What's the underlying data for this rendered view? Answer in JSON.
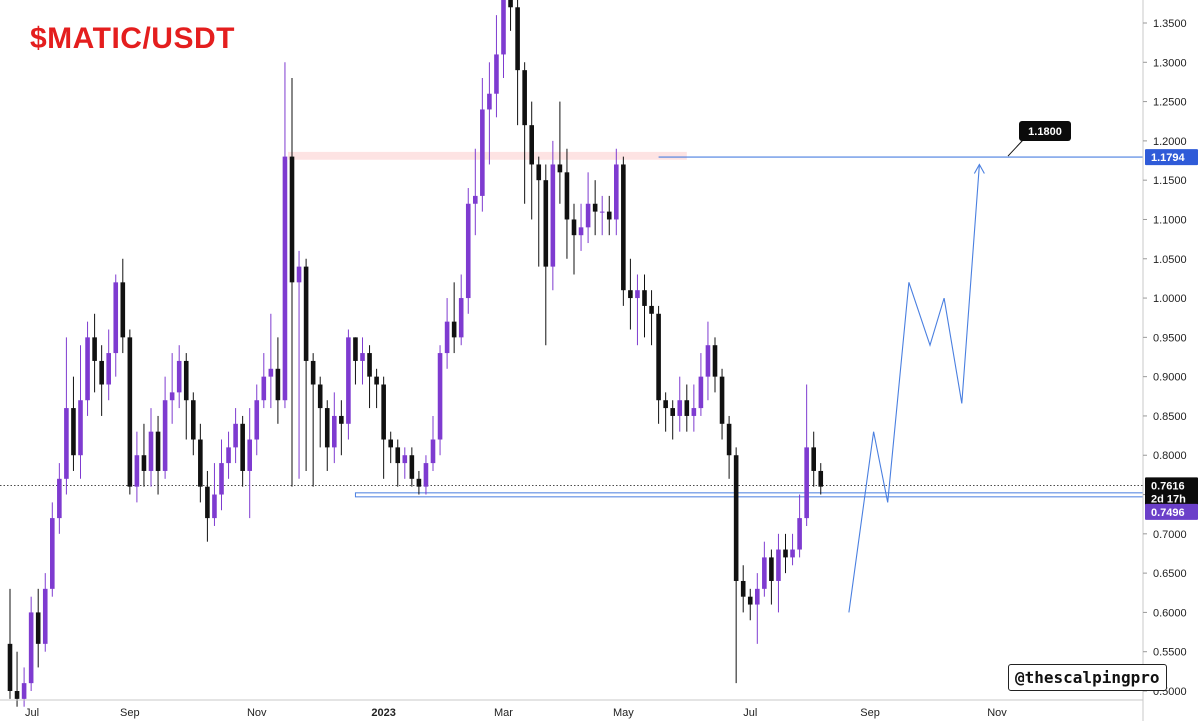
{
  "title": "$MATIC/USDT",
  "watermark": "@thescalpingpro",
  "colors": {
    "up": "#7e3bd0",
    "down": "#111111",
    "title": "#e41e1e",
    "projection": "#4a7fe0",
    "resistance_zone": "#fde3e3",
    "price_label_bg": "#0b0b0b",
    "support_label_bg": "#6b3fc9",
    "resistance_label_bg": "#2f5bd8"
  },
  "chart_data": {
    "type": "candlestick",
    "title": "$MATIC/USDT",
    "y_axis": {
      "ticks": [
        "1.3500",
        "1.3000",
        "1.2500",
        "1.2000",
        "1.1500",
        "1.1000",
        "1.0500",
        "1.0000",
        "0.9500",
        "0.9000",
        "0.8500",
        "0.8000",
        "0.7500",
        "0.7000",
        "0.6500",
        "0.6000",
        "0.5500",
        "0.5000"
      ],
      "ylim": [
        0.495,
        1.37
      ],
      "position": "right"
    },
    "x_axis": {
      "ticks": [
        {
          "label": "Jul",
          "index": 0
        },
        {
          "label": "Sep",
          "index": 17
        },
        {
          "label": "Nov",
          "index": 35
        },
        {
          "label": "2023",
          "index": 53
        },
        {
          "label": "Mar",
          "index": 70
        },
        {
          "label": "May",
          "index": 87
        },
        {
          "label": "Jul",
          "index": 105
        },
        {
          "label": "Sep",
          "index": 122
        },
        {
          "label": "Nov",
          "index": 140
        }
      ],
      "bold_labels": [
        "2023"
      ]
    },
    "candles": [
      [
        0.56,
        0.5,
        0.63,
        0.49
      ],
      [
        0.5,
        0.49,
        0.55,
        0.48
      ],
      [
        0.49,
        0.51,
        0.53,
        0.48
      ],
      [
        0.51,
        0.6,
        0.62,
        0.5
      ],
      [
        0.6,
        0.56,
        0.63,
        0.53
      ],
      [
        0.56,
        0.63,
        0.65,
        0.55
      ],
      [
        0.63,
        0.72,
        0.74,
        0.62
      ],
      [
        0.72,
        0.77,
        0.79,
        0.7
      ],
      [
        0.77,
        0.86,
        0.95,
        0.75
      ],
      [
        0.86,
        0.8,
        0.9,
        0.78
      ],
      [
        0.8,
        0.87,
        0.94,
        0.77
      ],
      [
        0.87,
        0.95,
        0.97,
        0.85
      ],
      [
        0.95,
        0.92,
        0.98,
        0.88
      ],
      [
        0.92,
        0.89,
        0.94,
        0.85
      ],
      [
        0.89,
        0.93,
        0.96,
        0.87
      ],
      [
        0.93,
        1.02,
        1.03,
        0.9
      ],
      [
        1.02,
        0.95,
        1.05,
        0.93
      ],
      [
        0.95,
        0.76,
        0.96,
        0.75
      ],
      [
        0.76,
        0.8,
        0.83,
        0.74
      ],
      [
        0.8,
        0.78,
        0.84,
        0.76
      ],
      [
        0.78,
        0.83,
        0.86,
        0.76
      ],
      [
        0.83,
        0.78,
        0.85,
        0.75
      ],
      [
        0.78,
        0.87,
        0.9,
        0.77
      ],
      [
        0.87,
        0.88,
        0.93,
        0.84
      ],
      [
        0.88,
        0.92,
        0.94,
        0.86
      ],
      [
        0.92,
        0.87,
        0.93,
        0.82
      ],
      [
        0.87,
        0.82,
        0.88,
        0.8
      ],
      [
        0.82,
        0.76,
        0.84,
        0.74
      ],
      [
        0.76,
        0.72,
        0.78,
        0.69
      ],
      [
        0.72,
        0.75,
        0.79,
        0.71
      ],
      [
        0.75,
        0.79,
        0.82,
        0.73
      ],
      [
        0.79,
        0.81,
        0.83,
        0.77
      ],
      [
        0.81,
        0.84,
        0.86,
        0.79
      ],
      [
        0.84,
        0.78,
        0.85,
        0.76
      ],
      [
        0.78,
        0.82,
        0.86,
        0.72
      ],
      [
        0.82,
        0.87,
        0.89,
        0.8
      ],
      [
        0.87,
        0.9,
        0.93,
        0.86
      ],
      [
        0.9,
        0.91,
        0.98,
        0.86
      ],
      [
        0.91,
        0.87,
        0.95,
        0.84
      ],
      [
        0.87,
        1.18,
        1.3,
        0.86
      ],
      [
        1.18,
        1.02,
        1.28,
        0.76
      ],
      [
        1.02,
        1.04,
        1.06,
        0.77
      ],
      [
        1.04,
        0.92,
        1.05,
        0.78
      ],
      [
        0.92,
        0.89,
        0.93,
        0.76
      ],
      [
        0.89,
        0.86,
        0.9,
        0.81
      ],
      [
        0.86,
        0.81,
        0.87,
        0.78
      ],
      [
        0.81,
        0.85,
        0.88,
        0.79
      ],
      [
        0.85,
        0.84,
        0.87,
        0.8
      ],
      [
        0.84,
        0.95,
        0.96,
        0.82
      ],
      [
        0.95,
        0.92,
        0.95,
        0.89
      ],
      [
        0.92,
        0.93,
        0.95,
        0.89
      ],
      [
        0.93,
        0.9,
        0.94,
        0.86
      ],
      [
        0.9,
        0.89,
        0.91,
        0.86
      ],
      [
        0.89,
        0.82,
        0.9,
        0.77
      ],
      [
        0.82,
        0.81,
        0.83,
        0.79
      ],
      [
        0.81,
        0.79,
        0.82,
        0.76
      ],
      [
        0.79,
        0.8,
        0.81,
        0.77
      ],
      [
        0.8,
        0.77,
        0.81,
        0.76
      ],
      [
        0.77,
        0.76,
        0.78,
        0.75
      ],
      [
        0.76,
        0.79,
        0.8,
        0.75
      ],
      [
        0.79,
        0.82,
        0.85,
        0.78
      ],
      [
        0.82,
        0.93,
        0.94,
        0.8
      ],
      [
        0.93,
        0.97,
        1.0,
        0.91
      ],
      [
        0.97,
        0.95,
        1.02,
        0.93
      ],
      [
        0.95,
        1.0,
        1.03,
        0.94
      ],
      [
        1.0,
        1.12,
        1.14,
        0.98
      ],
      [
        1.12,
        1.13,
        1.19,
        1.08
      ],
      [
        1.13,
        1.24,
        1.28,
        1.11
      ],
      [
        1.24,
        1.26,
        1.3,
        1.17
      ],
      [
        1.26,
        1.31,
        1.36,
        1.23
      ],
      [
        1.31,
        1.4,
        1.43,
        1.28
      ],
      [
        1.4,
        1.37,
        1.42,
        1.34
      ],
      [
        1.37,
        1.29,
        1.38,
        1.22
      ],
      [
        1.29,
        1.22,
        1.3,
        1.12
      ],
      [
        1.22,
        1.17,
        1.25,
        1.1
      ],
      [
        1.17,
        1.15,
        1.18,
        1.04
      ],
      [
        1.15,
        1.04,
        1.17,
        0.94
      ],
      [
        1.04,
        1.17,
        1.2,
        1.01
      ],
      [
        1.17,
        1.16,
        1.25,
        1.12
      ],
      [
        1.16,
        1.1,
        1.19,
        1.05
      ],
      [
        1.1,
        1.08,
        1.12,
        1.03
      ],
      [
        1.08,
        1.09,
        1.12,
        1.06
      ],
      [
        1.09,
        1.12,
        1.16,
        1.07
      ],
      [
        1.12,
        1.11,
        1.15,
        1.08
      ],
      [
        1.11,
        1.11,
        1.13,
        1.08
      ],
      [
        1.11,
        1.1,
        1.13,
        1.08
      ],
      [
        1.1,
        1.17,
        1.19,
        1.08
      ],
      [
        1.17,
        1.01,
        1.18,
        0.99
      ],
      [
        1.01,
        1.0,
        1.05,
        0.96
      ],
      [
        1.0,
        1.01,
        1.03,
        0.94
      ],
      [
        1.01,
        0.99,
        1.03,
        0.95
      ],
      [
        0.99,
        0.98,
        1.01,
        0.94
      ],
      [
        0.98,
        0.87,
        0.99,
        0.84
      ],
      [
        0.87,
        0.86,
        0.88,
        0.83
      ],
      [
        0.86,
        0.85,
        0.87,
        0.82
      ],
      [
        0.85,
        0.87,
        0.9,
        0.83
      ],
      [
        0.87,
        0.85,
        0.89,
        0.83
      ],
      [
        0.85,
        0.86,
        0.89,
        0.83
      ],
      [
        0.86,
        0.9,
        0.93,
        0.85
      ],
      [
        0.9,
        0.94,
        0.97,
        0.87
      ],
      [
        0.94,
        0.9,
        0.95,
        0.88
      ],
      [
        0.9,
        0.84,
        0.91,
        0.82
      ],
      [
        0.84,
        0.8,
        0.85,
        0.77
      ],
      [
        0.8,
        0.64,
        0.81,
        0.51
      ],
      [
        0.64,
        0.62,
        0.66,
        0.6
      ],
      [
        0.62,
        0.61,
        0.63,
        0.59
      ],
      [
        0.61,
        0.63,
        0.65,
        0.56
      ],
      [
        0.63,
        0.67,
        0.69,
        0.62
      ],
      [
        0.67,
        0.64,
        0.68,
        0.61
      ],
      [
        0.64,
        0.68,
        0.7,
        0.6
      ],
      [
        0.68,
        0.67,
        0.7,
        0.65
      ],
      [
        0.67,
        0.68,
        0.7,
        0.66
      ],
      [
        0.68,
        0.72,
        0.75,
        0.67
      ],
      [
        0.72,
        0.81,
        0.89,
        0.71
      ],
      [
        0.81,
        0.78,
        0.83,
        0.76
      ],
      [
        0.78,
        0.76,
        0.79,
        0.75
      ]
    ],
    "horizontal_levels": [
      {
        "label": "1.1794",
        "value": 1.1794,
        "type": "resistance"
      },
      {
        "label": "0.7496",
        "value": 0.7496,
        "type": "support"
      }
    ],
    "resistance_zone": {
      "from": 1.176,
      "to": 1.186
    },
    "annotation": {
      "text": "1.1800"
    },
    "current_price": {
      "value": 0.7616,
      "label": "0.7616",
      "countdown": "2d 17h"
    },
    "projection": {
      "description": "hand-drawn projected path",
      "points": [
        [
          119,
          0.6
        ],
        [
          122.5,
          0.83
        ],
        [
          124.5,
          0.74
        ],
        [
          127.5,
          1.02
        ],
        [
          130.5,
          0.94
        ],
        [
          132.5,
          1.0
        ],
        [
          135,
          0.866
        ],
        [
          137.5,
          1.17
        ]
      ]
    }
  }
}
